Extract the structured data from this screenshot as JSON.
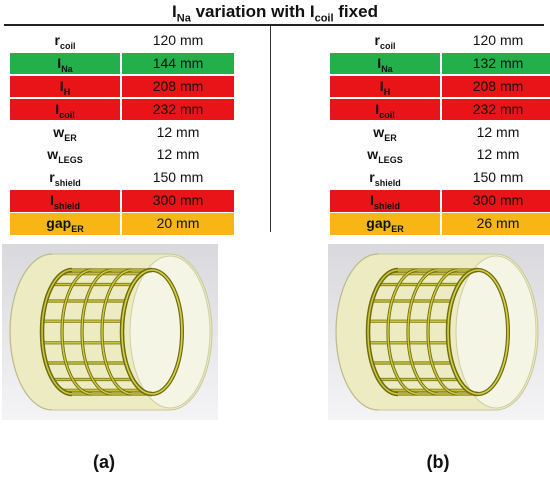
{
  "title": {
    "prefix": "I",
    "prefix_sub": "Na",
    "middle": " variation with I",
    "middle_sub": "coil",
    "suffix": " fixed"
  },
  "labels": [
    {
      "main": "r",
      "sub": "coil"
    },
    {
      "main": "I",
      "sub": "Na"
    },
    {
      "main": "I",
      "sub": "H"
    },
    {
      "main": "I",
      "sub": "coil"
    },
    {
      "main": "w",
      "sub": "ER"
    },
    {
      "main": "w",
      "sub": "LEGS"
    },
    {
      "main": "r",
      "sub": "shield"
    },
    {
      "main": "I",
      "sub": "shield"
    },
    {
      "main": "gap",
      "sub": "ER"
    }
  ],
  "row_colors": [
    "",
    "#23b04a",
    "#e81418",
    "#e81418",
    "",
    "",
    "",
    "#e81418",
    "#f7b613"
  ],
  "table_a": [
    "120 mm",
    "144 mm",
    "208 mm",
    "232 mm",
    "12 mm",
    "12 mm",
    "150 mm",
    "300 mm",
    "20 mm"
  ],
  "table_b": [
    "120 mm",
    "132 mm",
    "208 mm",
    "232 mm",
    "12 mm",
    "12 mm",
    "150 mm",
    "300 mm",
    "26 mm"
  ],
  "captions": {
    "a": "(a)",
    "b": "(b)"
  }
}
